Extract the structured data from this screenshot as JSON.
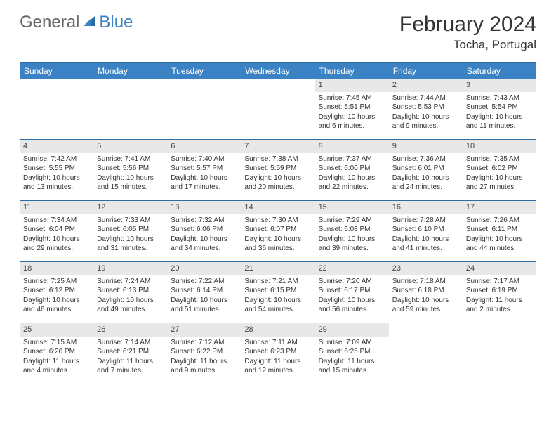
{
  "brand": {
    "part1": "General",
    "part2": "Blue"
  },
  "title": "February 2024",
  "location": "Tocha, Portugal",
  "colors": {
    "header_bar": "#3b82c4",
    "border": "#2b6ca3",
    "daynum_bg": "#e8e8e8",
    "text": "#333333",
    "brand_gray": "#666666",
    "brand_blue": "#3b82c4"
  },
  "weekdays": [
    "Sunday",
    "Monday",
    "Tuesday",
    "Wednesday",
    "Thursday",
    "Friday",
    "Saturday"
  ],
  "weeks": [
    [
      null,
      null,
      null,
      null,
      {
        "n": "1",
        "sr": "7:45 AM",
        "ss": "5:51 PM",
        "dl": "10 hours and 6 minutes."
      },
      {
        "n": "2",
        "sr": "7:44 AM",
        "ss": "5:53 PM",
        "dl": "10 hours and 9 minutes."
      },
      {
        "n": "3",
        "sr": "7:43 AM",
        "ss": "5:54 PM",
        "dl": "10 hours and 11 minutes."
      }
    ],
    [
      {
        "n": "4",
        "sr": "7:42 AM",
        "ss": "5:55 PM",
        "dl": "10 hours and 13 minutes."
      },
      {
        "n": "5",
        "sr": "7:41 AM",
        "ss": "5:56 PM",
        "dl": "10 hours and 15 minutes."
      },
      {
        "n": "6",
        "sr": "7:40 AM",
        "ss": "5:57 PM",
        "dl": "10 hours and 17 minutes."
      },
      {
        "n": "7",
        "sr": "7:38 AM",
        "ss": "5:59 PM",
        "dl": "10 hours and 20 minutes."
      },
      {
        "n": "8",
        "sr": "7:37 AM",
        "ss": "6:00 PM",
        "dl": "10 hours and 22 minutes."
      },
      {
        "n": "9",
        "sr": "7:36 AM",
        "ss": "6:01 PM",
        "dl": "10 hours and 24 minutes."
      },
      {
        "n": "10",
        "sr": "7:35 AM",
        "ss": "6:02 PM",
        "dl": "10 hours and 27 minutes."
      }
    ],
    [
      {
        "n": "11",
        "sr": "7:34 AM",
        "ss": "6:04 PM",
        "dl": "10 hours and 29 minutes."
      },
      {
        "n": "12",
        "sr": "7:33 AM",
        "ss": "6:05 PM",
        "dl": "10 hours and 31 minutes."
      },
      {
        "n": "13",
        "sr": "7:32 AM",
        "ss": "6:06 PM",
        "dl": "10 hours and 34 minutes."
      },
      {
        "n": "14",
        "sr": "7:30 AM",
        "ss": "6:07 PM",
        "dl": "10 hours and 36 minutes."
      },
      {
        "n": "15",
        "sr": "7:29 AM",
        "ss": "6:08 PM",
        "dl": "10 hours and 39 minutes."
      },
      {
        "n": "16",
        "sr": "7:28 AM",
        "ss": "6:10 PM",
        "dl": "10 hours and 41 minutes."
      },
      {
        "n": "17",
        "sr": "7:26 AM",
        "ss": "6:11 PM",
        "dl": "10 hours and 44 minutes."
      }
    ],
    [
      {
        "n": "18",
        "sr": "7:25 AM",
        "ss": "6:12 PM",
        "dl": "10 hours and 46 minutes."
      },
      {
        "n": "19",
        "sr": "7:24 AM",
        "ss": "6:13 PM",
        "dl": "10 hours and 49 minutes."
      },
      {
        "n": "20",
        "sr": "7:22 AM",
        "ss": "6:14 PM",
        "dl": "10 hours and 51 minutes."
      },
      {
        "n": "21",
        "sr": "7:21 AM",
        "ss": "6:15 PM",
        "dl": "10 hours and 54 minutes."
      },
      {
        "n": "22",
        "sr": "7:20 AM",
        "ss": "6:17 PM",
        "dl": "10 hours and 56 minutes."
      },
      {
        "n": "23",
        "sr": "7:18 AM",
        "ss": "6:18 PM",
        "dl": "10 hours and 59 minutes."
      },
      {
        "n": "24",
        "sr": "7:17 AM",
        "ss": "6:19 PM",
        "dl": "11 hours and 2 minutes."
      }
    ],
    [
      {
        "n": "25",
        "sr": "7:15 AM",
        "ss": "6:20 PM",
        "dl": "11 hours and 4 minutes."
      },
      {
        "n": "26",
        "sr": "7:14 AM",
        "ss": "6:21 PM",
        "dl": "11 hours and 7 minutes."
      },
      {
        "n": "27",
        "sr": "7:12 AM",
        "ss": "6:22 PM",
        "dl": "11 hours and 9 minutes."
      },
      {
        "n": "28",
        "sr": "7:11 AM",
        "ss": "6:23 PM",
        "dl": "11 hours and 12 minutes."
      },
      {
        "n": "29",
        "sr": "7:09 AM",
        "ss": "6:25 PM",
        "dl": "11 hours and 15 minutes."
      },
      null,
      null
    ]
  ],
  "labels": {
    "sunrise": "Sunrise:",
    "sunset": "Sunset:",
    "daylight": "Daylight:"
  }
}
